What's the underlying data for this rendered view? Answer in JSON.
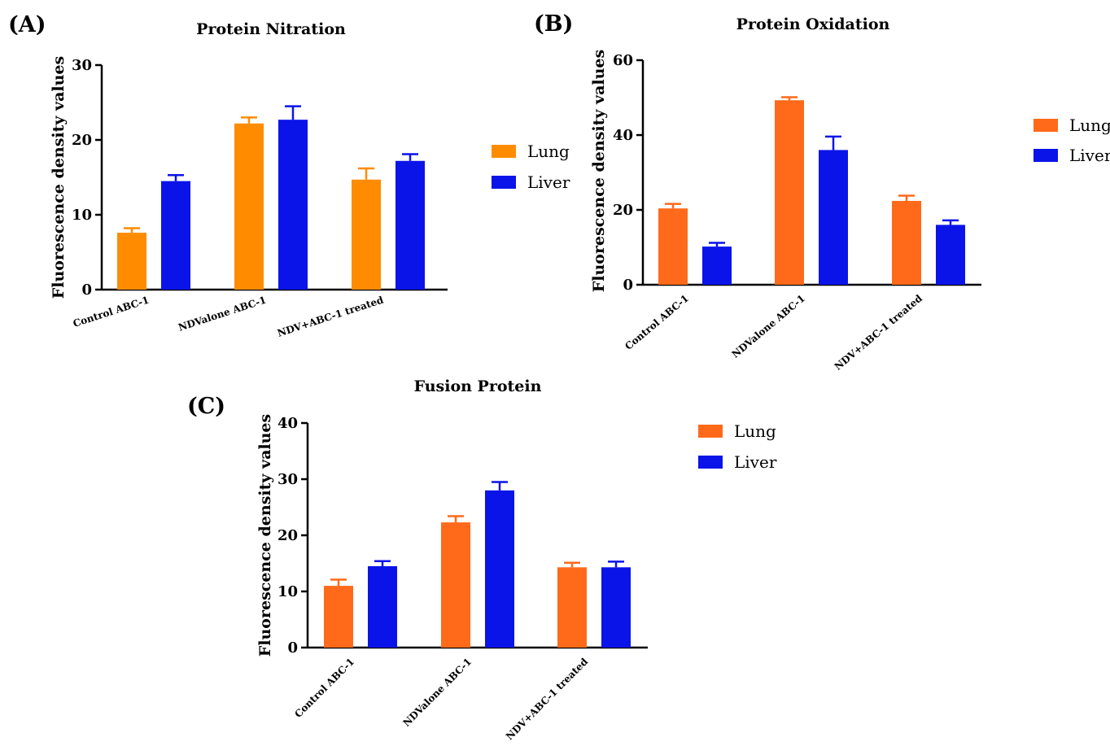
{
  "chart_data": [
    {
      "panel": "(A)",
      "type": "bar",
      "title": "Protein Nitration",
      "ylabel": "Fluorescence density values",
      "ylim": [
        0,
        30
      ],
      "yticks": [
        0,
        10,
        20,
        30
      ],
      "categories": [
        "Control ABC-1",
        "NDValone ABC-1",
        "NDV+ABC-1 treated"
      ],
      "series": [
        {
          "name": "Lung",
          "color": "#FF8C00",
          "values": [
            7.6,
            22.2,
            14.7
          ],
          "errors": [
            0.6,
            0.8,
            1.5
          ]
        },
        {
          "name": "Liver",
          "color": "#0A14E8",
          "values": [
            14.5,
            22.7,
            17.2
          ],
          "errors": [
            0.8,
            1.8,
            0.9
          ]
        }
      ],
      "legend": "right"
    },
    {
      "panel": "(B)",
      "type": "bar",
      "title": "Protein Oxidation",
      "ylabel": "Fluorescence density values",
      "ylim": [
        0,
        60
      ],
      "yticks": [
        0,
        20,
        40,
        60
      ],
      "categories": [
        "Control ABC-1",
        "NDValone ABC-1",
        "NDV+ABC-1 treated"
      ],
      "series": [
        {
          "name": "Lung",
          "color": "#FF6A1A",
          "values": [
            20.4,
            49.3,
            22.4
          ],
          "errors": [
            1.2,
            0.8,
            1.4
          ]
        },
        {
          "name": "Liver",
          "color": "#0A14E8",
          "values": [
            10.2,
            36.0,
            16.0
          ],
          "errors": [
            1.0,
            3.6,
            1.2
          ]
        }
      ],
      "legend": "right"
    },
    {
      "panel": "(C)",
      "type": "bar",
      "title": "Fusion Protein",
      "ylabel": "Fluorescence density values",
      "ylim": [
        0,
        40
      ],
      "yticks": [
        0,
        10,
        20,
        30,
        40
      ],
      "categories": [
        "Control ABC-1",
        "NDValone ABC-1",
        "NDV+ABC-1 treated"
      ],
      "series": [
        {
          "name": "Lung",
          "color": "#FF6A1A",
          "values": [
            11.0,
            22.3,
            14.3
          ],
          "errors": [
            1.1,
            1.1,
            0.8
          ]
        },
        {
          "name": "Liver",
          "color": "#0A14E8",
          "values": [
            14.5,
            28.0,
            14.3
          ],
          "errors": [
            0.9,
            1.5,
            1.0
          ]
        }
      ],
      "legend": "right"
    }
  ]
}
